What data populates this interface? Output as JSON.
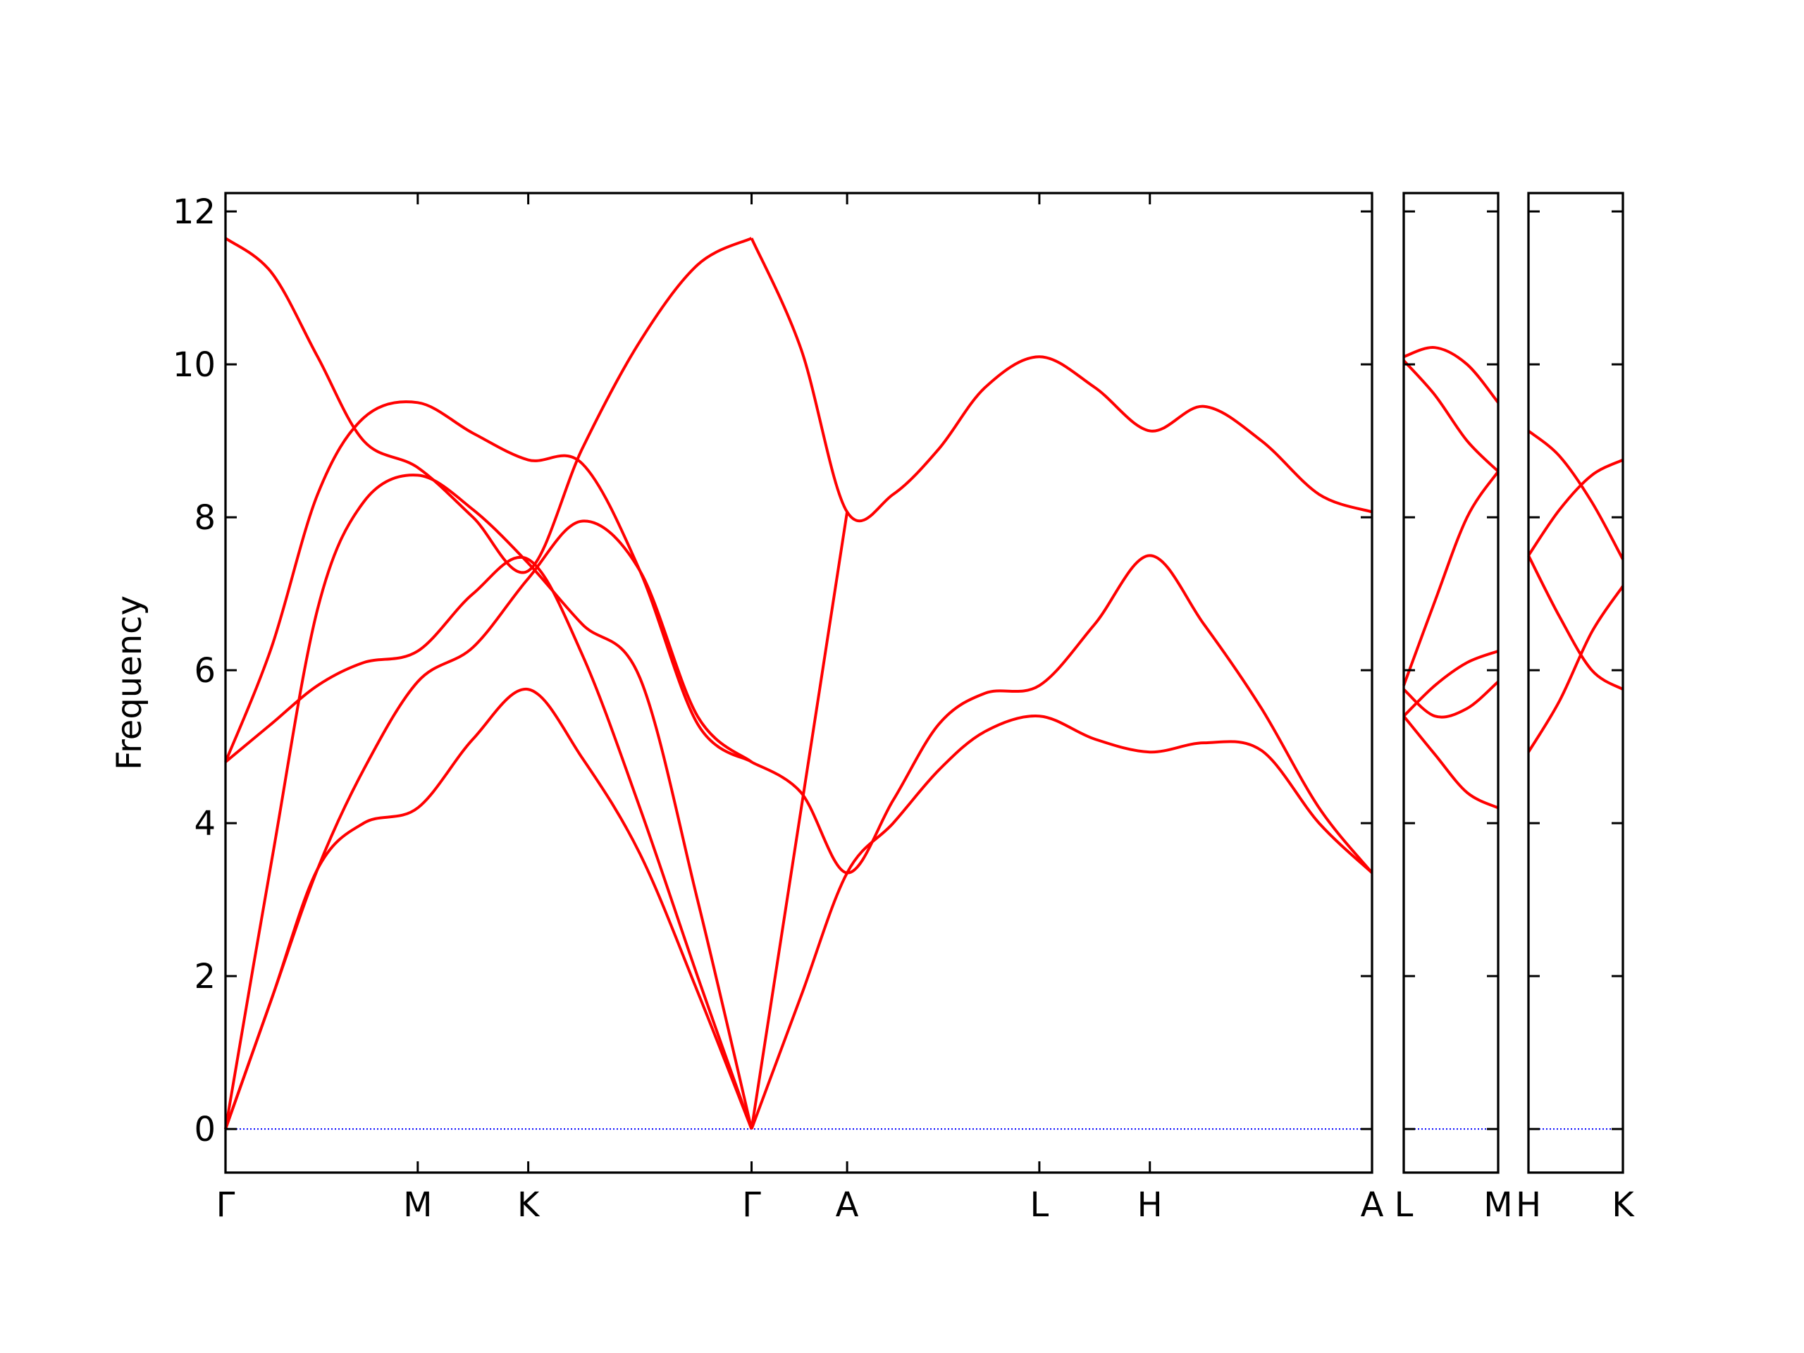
{
  "chart_data": [
    {
      "type": "line",
      "y_label": "Frequency",
      "show_ytick_labels": true,
      "xlim": [
        0,
        9.96
      ],
      "ylim": [
        -0.57,
        12.24
      ],
      "xticks": [
        {
          "value": 0,
          "label": "Γ"
        },
        {
          "value": 1.67,
          "label": "M"
        },
        {
          "value": 2.63,
          "label": "K"
        },
        {
          "value": 4.57,
          "label": "Γ"
        },
        {
          "value": 5.4,
          "label": "A"
        },
        {
          "value": 7.07,
          "label": "L"
        },
        {
          "value": 8.03,
          "label": "H"
        },
        {
          "value": 9.96,
          "label": "A"
        }
      ],
      "yticks": [
        0,
        2,
        4,
        6,
        8,
        10,
        12
      ],
      "reference_line": {
        "value": 0,
        "color": "#0000ff"
      },
      "series": [
        {
          "color": "#ff0000",
          "x": [
            0,
            0.4,
            0.8,
            1.2,
            1.67,
            2.15,
            2.63,
            3.1,
            3.6,
            4.1,
            4.57
          ],
          "values": [
            0,
            1.7,
            3.4,
            4.0,
            4.2,
            5.1,
            5.75,
            4.85,
            3.6,
            1.8,
            0
          ]
        },
        {
          "color": "#ff0000",
          "x": [
            0,
            0.4,
            0.8,
            1.2,
            1.67,
            2.15,
            2.63,
            3.1,
            3.6,
            4.1,
            4.57
          ],
          "values": [
            0,
            1.7,
            3.4,
            4.7,
            5.85,
            6.3,
            7.2,
            7.95,
            7.3,
            5.4,
            4.8
          ]
        },
        {
          "color": "#ff0000",
          "x": [
            0,
            0.4,
            0.8,
            1.2,
            1.67,
            2.15,
            2.63,
            3.1,
            3.6,
            4.1,
            4.57
          ],
          "values": [
            0,
            3.5,
            6.8,
            8.2,
            8.55,
            8.1,
            7.4,
            6.6,
            5.9,
            3.0,
            0
          ]
        },
        {
          "color": "#ff0000",
          "x": [
            0,
            0.4,
            0.8,
            1.2,
            1.67,
            2.15,
            2.63,
            3.1,
            3.6,
            4.1,
            4.57
          ],
          "values": [
            4.8,
            5.3,
            5.8,
            6.1,
            6.25,
            7.0,
            7.45,
            6.2,
            4.2,
            2.0,
            0
          ]
        },
        {
          "color": "#ff0000",
          "x": [
            0,
            0.4,
            0.8,
            1.2,
            1.67,
            2.15,
            2.63,
            3.1,
            3.6,
            4.1,
            4.57
          ],
          "values": [
            4.8,
            6.3,
            8.3,
            9.3,
            9.5,
            9.1,
            8.75,
            8.7,
            7.3,
            5.3,
            4.8
          ]
        },
        {
          "color": "#ff0000",
          "x": [
            0,
            0.4,
            0.8,
            1.2,
            1.67,
            2.15,
            2.63,
            3.1,
            3.6,
            4.1,
            4.57
          ],
          "values": [
            11.65,
            11.2,
            10.1,
            9.0,
            8.65,
            8.0,
            7.3,
            8.9,
            10.3,
            11.3,
            11.65
          ]
        },
        {
          "color": "#ff0000",
          "x": [
            4.57,
            5.0,
            5.4,
            5.8,
            6.2,
            6.6,
            7.07,
            7.55,
            8.03,
            8.5,
            9.0,
            9.5,
            9.96
          ],
          "values": [
            11.65,
            10.2,
            8.07,
            8.3,
            8.9,
            9.7,
            10.1,
            9.7,
            9.13,
            9.45,
            9.0,
            8.3,
            8.07
          ]
        },
        {
          "color": "#ff0000",
          "x": [
            4.57,
            5.0,
            5.4
          ],
          "values": [
            0,
            4.18,
            8.07
          ]
        },
        {
          "color": "#ff0000",
          "x": [
            4.57,
            5.0,
            5.4,
            5.8,
            6.2,
            6.6,
            7.07,
            7.55,
            8.03,
            8.5,
            9.0,
            9.5,
            9.96
          ],
          "values": [
            4.8,
            4.4,
            3.35,
            4.3,
            5.3,
            5.7,
            5.8,
            6.6,
            7.5,
            6.6,
            5.5,
            4.2,
            3.35
          ]
        },
        {
          "color": "#ff0000",
          "x": [
            4.57,
            5.0,
            5.4,
            5.8,
            6.2,
            6.6,
            7.07,
            7.55,
            8.03,
            8.5,
            9.0,
            9.5,
            9.96
          ],
          "values": [
            0,
            1.74,
            3.35,
            4.0,
            4.7,
            5.2,
            5.4,
            5.1,
            4.93,
            5.05,
            4.95,
            4.0,
            3.35
          ]
        }
      ]
    },
    {
      "type": "line",
      "show_ytick_labels": false,
      "xlim": [
        0,
        0.82
      ],
      "ylim": [
        -0.57,
        12.24
      ],
      "xticks": [
        {
          "value": 0,
          "label": "L"
        },
        {
          "value": 0.82,
          "label": "M"
        }
      ],
      "yticks": [
        0,
        2,
        4,
        6,
        8,
        10,
        12
      ],
      "reference_line": {
        "value": 0,
        "color": "#0000ff"
      },
      "series": [
        {
          "color": "#ff0000",
          "x": [
            0,
            0.27,
            0.55,
            0.82
          ],
          "values": [
            10.1,
            10.22,
            10.0,
            9.5
          ]
        },
        {
          "color": "#ff0000",
          "x": [
            0,
            0.27,
            0.55,
            0.82
          ],
          "values": [
            10.05,
            9.6,
            9.0,
            8.6
          ]
        },
        {
          "color": "#ff0000",
          "x": [
            0,
            0.27,
            0.55,
            0.82
          ],
          "values": [
            5.8,
            6.9,
            8.0,
            8.6
          ]
        },
        {
          "color": "#ff0000",
          "x": [
            0,
            0.27,
            0.55,
            0.82
          ],
          "values": [
            5.4,
            5.8,
            6.1,
            6.25
          ]
        },
        {
          "color": "#ff0000",
          "x": [
            0,
            0.27,
            0.55,
            0.82
          ],
          "values": [
            5.75,
            5.4,
            5.5,
            5.85
          ]
        },
        {
          "color": "#ff0000",
          "x": [
            0,
            0.27,
            0.55,
            0.82
          ],
          "values": [
            5.4,
            4.9,
            4.4,
            4.2
          ]
        }
      ]
    },
    {
      "type": "line",
      "show_ytick_labels": false,
      "xlim": [
        0,
        0.82
      ],
      "ylim": [
        -0.57,
        12.24
      ],
      "xticks": [
        {
          "value": 0,
          "label": "H"
        },
        {
          "value": 0.82,
          "label": "K"
        }
      ],
      "yticks": [
        0,
        2,
        4,
        6,
        8,
        10,
        12
      ],
      "reference_line": {
        "value": 0,
        "color": "#0000ff"
      },
      "series": [
        {
          "color": "#ff0000",
          "x": [
            0,
            0.27,
            0.55,
            0.82
          ],
          "values": [
            9.13,
            8.8,
            8.2,
            7.45
          ]
        },
        {
          "color": "#ff0000",
          "x": [
            0,
            0.27,
            0.55,
            0.82
          ],
          "values": [
            7.5,
            8.1,
            8.55,
            8.75
          ]
        },
        {
          "color": "#ff0000",
          "x": [
            0,
            0.27,
            0.55,
            0.82
          ],
          "values": [
            7.5,
            6.7,
            6.0,
            5.75
          ]
        },
        {
          "color": "#ff0000",
          "x": [
            0,
            0.27,
            0.55,
            0.82
          ],
          "values": [
            4.93,
            5.6,
            6.5,
            7.1
          ]
        }
      ]
    }
  ]
}
